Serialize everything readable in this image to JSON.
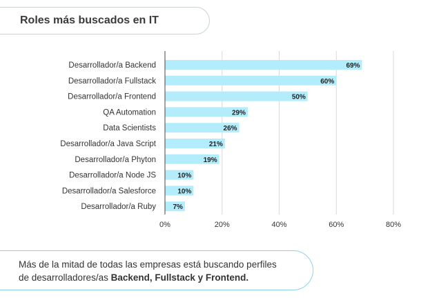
{
  "header": {
    "title": "Roles más buscados en IT"
  },
  "footer": {
    "text_line1": "Más de la mitad de todas las empresas está buscando perfiles",
    "text_line2_prefix": "de desarrolladores/as ",
    "text_line2_bold": "Backend, Fullstack y Frontend."
  },
  "colors": {
    "bar": "#b3ecfb",
    "grid": "#d9d9d9",
    "axis": "#444444",
    "footer_border": "#8dd3e7"
  },
  "chart_data": {
    "type": "bar",
    "orientation": "horizontal",
    "categories": [
      "Desarrollador/a Backend",
      "Desarrollador/a Fullstack",
      "Desarrollador/a Frontend",
      "QA Automation",
      "Data Scientists",
      "Desarrollador/a Java Script",
      "Desarrollador/a Phyton",
      "Desarrollador/a Node JS",
      "Desarrollador/a Salesforce",
      "Desarrollador/a Ruby"
    ],
    "values": [
      69,
      60,
      50,
      29,
      26,
      21,
      19,
      10,
      10,
      7
    ],
    "value_labels": [
      "69%",
      "60%",
      "50%",
      "29%",
      "26%",
      "21%",
      "19%",
      "10%",
      "10%",
      "7%"
    ],
    "xlim": [
      0,
      80
    ],
    "xticks": [
      0,
      20,
      40,
      60,
      80
    ],
    "xtick_labels": [
      "0%",
      "20%",
      "40%",
      "60%",
      "80%"
    ],
    "grid": true,
    "title": "Roles más buscados en IT"
  }
}
